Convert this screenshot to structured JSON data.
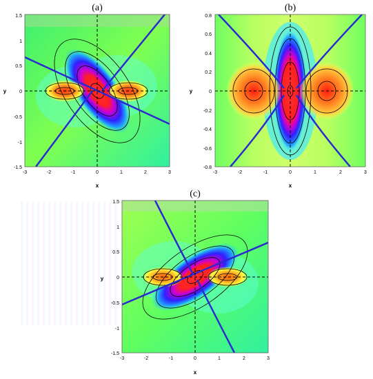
{
  "figure": {
    "panels": [
      {
        "id": "a",
        "label": "(a)",
        "xlabel": "x",
        "ylabel": "y",
        "xticks": [
          "-3",
          "-2",
          "-1",
          "0",
          "1",
          "2",
          "3"
        ],
        "yticks": [
          "1.5",
          "1",
          "0.5",
          "0",
          "-0.5",
          "-1",
          "-1.5"
        ]
      },
      {
        "id": "b",
        "label": "(b)",
        "xlabel": "x",
        "ylabel": "y",
        "xticks": [
          "-3",
          "-2",
          "-1",
          "0",
          "1",
          "2",
          "3"
        ],
        "yticks": [
          "0.8",
          "0.6",
          "0.4",
          "0.2",
          "0",
          "-0.2",
          "-0.4",
          "-0.6",
          "-0.8"
        ]
      },
      {
        "id": "c",
        "label": "(c)",
        "xlabel": "x",
        "ylabel": "y",
        "xticks": [
          "-3",
          "-2",
          "-1",
          "0",
          "1",
          "2",
          "3"
        ],
        "yticks": [
          "1.5",
          "1",
          "0.5",
          "0",
          "-0.5",
          "-1",
          "-1.5"
        ]
      }
    ]
  },
  "chart_data": [
    {
      "type": "heatmap",
      "panel": "(a)",
      "title": "(a)",
      "xlabel": "x",
      "ylabel": "y",
      "xlim": [
        -3,
        3
      ],
      "ylim": [
        -1.5,
        1.5
      ],
      "colormap": [
        "#00c8ff",
        "#40ff60",
        "#ffff40",
        "#ff2020",
        "#ff00ff",
        "#2020ff"
      ],
      "central_lobe": {
        "center": [
          0,
          0
        ],
        "orientation": "upper-left to lower-right",
        "peak_region": "red"
      },
      "side_lobes": [
        {
          "center": [
            -1.1,
            0
          ],
          "color": "red-orange"
        },
        {
          "center": [
            1.1,
            0
          ],
          "color": "red-orange"
        }
      ],
      "blue_lines": [
        {
          "from": [
            -3,
            0.7
          ],
          "to": [
            3,
            -0.65
          ]
        },
        {
          "from": [
            -2.5,
            -1.5
          ],
          "to": [
            -0.2,
            0
          ]
        },
        {
          "from": [
            0.2,
            0
          ],
          "to": [
            2.8,
            1.5
          ]
        }
      ],
      "dashed_axes": {
        "x0": 0,
        "y0": 0
      },
      "grid": false
    },
    {
      "type": "heatmap",
      "panel": "(b)",
      "title": "(b)",
      "xlabel": "x",
      "ylabel": "y",
      "xlim": [
        -3,
        3
      ],
      "ylim": [
        -0.8,
        0.8
      ],
      "colormap": [
        "#00c8ff",
        "#40ff60",
        "#ffff40",
        "#ff2020",
        "#ff00ff",
        "#2020ff"
      ],
      "central_lobe": {
        "center": [
          0,
          0
        ],
        "orientation": "vertical",
        "peak_region": "red"
      },
      "side_lobes": [
        {
          "center": [
            -1.2,
            0
          ],
          "color": "red-orange"
        },
        {
          "center": [
            1.2,
            0
          ],
          "color": "red-orange"
        }
      ],
      "blue_lines": [
        {
          "from": [
            -3,
            0.8
          ],
          "to": [
            0,
            0
          ]
        },
        {
          "from": [
            3,
            0.8
          ],
          "to": [
            0,
            0
          ]
        },
        {
          "from": [
            -2.3,
            -0.8
          ],
          "to": [
            0,
            0
          ]
        },
        {
          "from": [
            2.3,
            -0.8
          ],
          "to": [
            0,
            0
          ]
        }
      ],
      "dashed_axes": {
        "x0": 0,
        "y0": 0
      },
      "grid": false
    },
    {
      "type": "heatmap",
      "panel": "(c)",
      "title": "(c)",
      "xlabel": "x",
      "ylabel": "y",
      "xlim": [
        -3,
        3
      ],
      "ylim": [
        -1.5,
        1.5
      ],
      "colormap": [
        "#00c8ff",
        "#40ff60",
        "#ffff40",
        "#ff2020",
        "#ff00ff",
        "#2020ff"
      ],
      "central_lobe": {
        "center": [
          0,
          0
        ],
        "orientation": "lower-left to upper-right",
        "peak_region": "red"
      },
      "side_lobes": [
        {
          "center": [
            -1.1,
            0
          ],
          "color": "orange"
        },
        {
          "center": [
            1.1,
            0
          ],
          "color": "orange"
        }
      ],
      "blue_lines": [
        {
          "from": [
            -3,
            -0.55
          ],
          "to": [
            3,
            0.7
          ]
        },
        {
          "from": [
            -1.6,
            1.5
          ],
          "to": [
            0,
            0
          ]
        },
        {
          "from": [
            0,
            0
          ],
          "to": [
            1.6,
            -1.5
          ]
        }
      ],
      "dashed_axes": {
        "x0": 0,
        "y0": 0
      },
      "grid": false
    }
  ]
}
